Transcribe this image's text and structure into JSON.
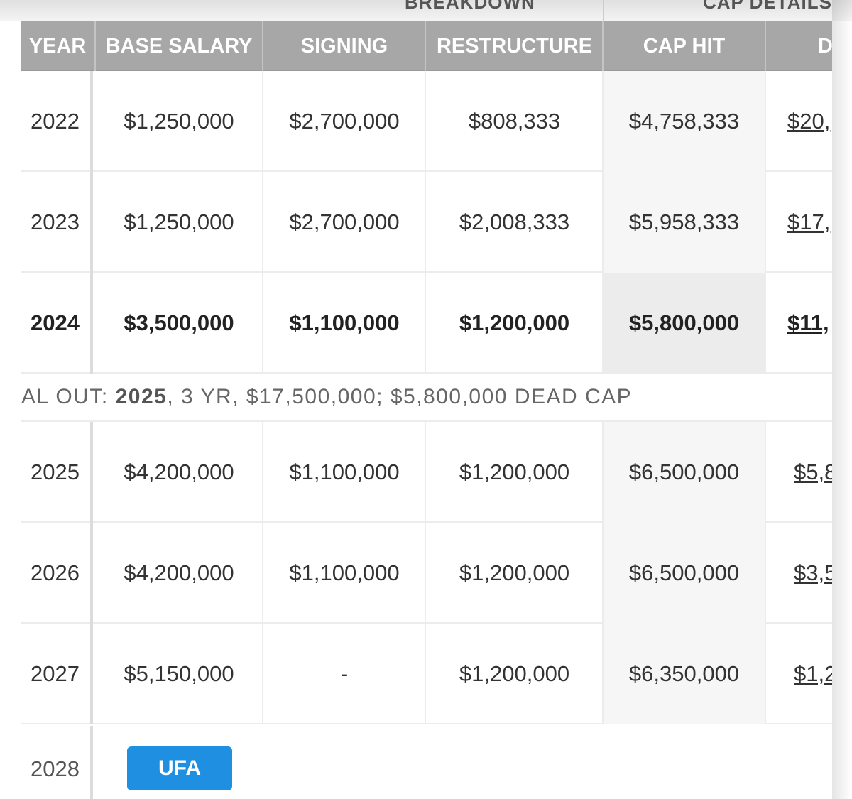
{
  "group_headers": {
    "breakdown": "BREAKDOWN",
    "cap_details": "CAP DETAILS"
  },
  "columns": {
    "year": "YEAR",
    "base_salary": "BASE SALARY",
    "signing": "SIGNING",
    "restructure": "RESTRUCTURE",
    "cap_hit": "CAP HIT",
    "dead": "DEA"
  },
  "rows_top": [
    {
      "year": "2022",
      "base": "$1,250,000",
      "signing": "$2,700,000",
      "restructure": "$808,333",
      "cap_hit": "$4,758,333",
      "dead": "$20,"
    },
    {
      "year": "2023",
      "base": "$1,250,000",
      "signing": "$2,700,000",
      "restructure": "$2,008,333",
      "cap_hit": "$5,958,333",
      "dead": "$17,"
    },
    {
      "year": "2024",
      "base": "$3,500,000",
      "signing": "$1,100,000",
      "restructure": "$1,200,000",
      "cap_hit": "$5,800,000",
      "dead": "$11,"
    }
  ],
  "notice": {
    "prefix": "AL OUT: ",
    "year": "2025",
    "rest": ", 3 YR, $17,500,000; $5,800,000 DEAD CAP"
  },
  "rows_bottom": [
    {
      "year": "2025",
      "base": "$4,200,000",
      "signing": "$1,100,000",
      "restructure": "$1,200,000",
      "cap_hit": "$6,500,000",
      "dead": "$5,8"
    },
    {
      "year": "2026",
      "base": "$4,200,000",
      "signing": "$1,100,000",
      "restructure": "$1,200,000",
      "cap_hit": "$6,500,000",
      "dead": "$3,5"
    },
    {
      "year": "2027",
      "base": "$5,150,000",
      "signing": "-",
      "restructure": "$1,200,000",
      "cap_hit": "$6,350,000",
      "dead": "$1,2"
    }
  ],
  "final_row": {
    "year": "2028",
    "badge": "UFA"
  },
  "colors": {
    "header_bg": "#a7a7a7",
    "badge_bg": "#1e8fe1"
  }
}
